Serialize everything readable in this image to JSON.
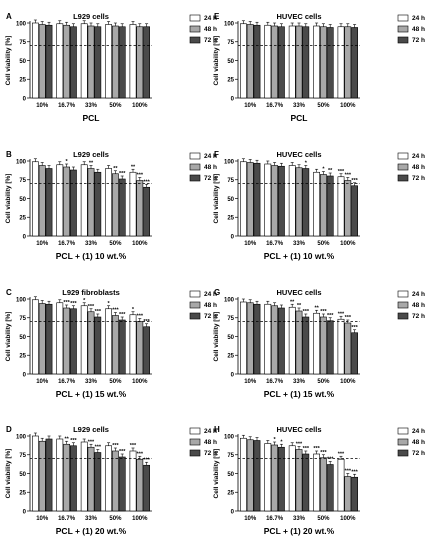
{
  "colors": {
    "h24": "#ffffff",
    "h48": "#a8a8a8",
    "h72": "#4a4a4a",
    "axis": "#000000"
  },
  "chart_data": [
    {
      "type": "bar",
      "panel_letter": "A",
      "title": "L929 cells",
      "xlabel": "PCL",
      "ylabel": "Cell viability [%]",
      "categories": [
        "10%",
        "16.7%",
        "33%",
        "50%",
        "100%"
      ],
      "ylim": [
        0,
        100
      ],
      "yticks": [
        0,
        25,
        50,
        75,
        100
      ],
      "reference_line": 70,
      "legend": [
        "24 h",
        "48 h",
        "72 h"
      ],
      "legend_position": "right",
      "series": [
        {
          "name": "24 h",
          "values": [
            100,
            99,
            99,
            98,
            98
          ],
          "stars": [
            "",
            "",
            "",
            "",
            ""
          ]
        },
        {
          "name": "48 h",
          "values": [
            98,
            97,
            96,
            96,
            95
          ],
          "stars": [
            "",
            "",
            "",
            "",
            ""
          ]
        },
        {
          "name": "72 h",
          "values": [
            97,
            95,
            95,
            95,
            95
          ],
          "stars": [
            "",
            "",
            "",
            "",
            ""
          ]
        }
      ]
    },
    {
      "type": "bar",
      "panel_letter": "B",
      "title": "L929 cells",
      "xlabel": "PCL + (1) 10 wt.%",
      "ylabel": "Cell viability [%]",
      "categories": [
        "10%",
        "16.7%",
        "33%",
        "50%",
        "100%"
      ],
      "ylim": [
        0,
        100
      ],
      "yticks": [
        0,
        25,
        50,
        75,
        100
      ],
      "reference_line": 70,
      "legend": [
        "24 h",
        "48 h",
        "72 h"
      ],
      "legend_position": "right",
      "series": [
        {
          "name": "24 h",
          "values": [
            99,
            95,
            95,
            90,
            85
          ],
          "stars": [
            "",
            "",
            "",
            "",
            "**"
          ]
        },
        {
          "name": "48 h",
          "values": [
            94,
            92,
            90,
            83,
            74
          ],
          "stars": [
            "",
            "*",
            "**",
            "**",
            "***"
          ]
        },
        {
          "name": "72 h",
          "values": [
            90,
            88,
            85,
            76,
            65
          ],
          "stars": [
            "",
            "",
            "",
            "***",
            "***"
          ]
        }
      ]
    },
    {
      "type": "bar",
      "panel_letter": "C",
      "title": "L929 fibroblasts",
      "xlabel": "PCL + (1) 15 wt.%",
      "ylabel": "Cell viability [%]",
      "categories": [
        "10%",
        "16.7%",
        "33%",
        "50%",
        "100%"
      ],
      "ylim": [
        0,
        100
      ],
      "yticks": [
        0,
        25,
        50,
        75,
        100
      ],
      "reference_line": 70,
      "legend": [
        "24 h",
        "48 h",
        "72 h"
      ],
      "legend_position": "right",
      "series": [
        {
          "name": "24 h",
          "values": [
            99,
            95,
            91,
            87,
            79
          ],
          "stars": [
            "",
            "",
            "*",
            "*",
            "*"
          ]
        },
        {
          "name": "48 h",
          "values": [
            94,
            88,
            83,
            78,
            70
          ],
          "stars": [
            "",
            "***",
            "***",
            "***",
            "***"
          ]
        },
        {
          "name": "72 h",
          "values": [
            93,
            87,
            76,
            72,
            63
          ],
          "stars": [
            "",
            "***",
            "***",
            "***",
            "***"
          ]
        }
      ]
    },
    {
      "type": "bar",
      "panel_letter": "D",
      "title": "L929 cells",
      "xlabel": "PCL + (1) 20 wt.%",
      "ylabel": "Cell viability [%]",
      "categories": [
        "10%",
        "16.7%",
        "33%",
        "50%",
        "100%"
      ],
      "ylim": [
        0,
        100
      ],
      "yticks": [
        0,
        25,
        50,
        75,
        100
      ],
      "reference_line": 70,
      "legend": [
        "24 h",
        "48 h",
        "72 h"
      ],
      "legend_position": "right",
      "series": [
        {
          "name": "24 h",
          "values": [
            100,
            96,
            92,
            87,
            80
          ],
          "stars": [
            "",
            "",
            "",
            "",
            "***"
          ]
        },
        {
          "name": "48 h",
          "values": [
            93,
            89,
            85,
            80,
            69
          ],
          "stars": [
            "",
            "**",
            "***",
            "***",
            "***"
          ]
        },
        {
          "name": "72 h",
          "values": [
            96,
            87,
            78,
            72,
            61
          ],
          "stars": [
            "",
            "***",
            "***",
            "***",
            "***"
          ]
        }
      ]
    },
    {
      "type": "bar",
      "panel_letter": "E",
      "title": "HUVEC cells",
      "xlabel": "PCL",
      "ylabel": "Cell viability [%]",
      "categories": [
        "10%",
        "16.7%",
        "33%",
        "50%",
        "100%"
      ],
      "ylim": [
        0,
        100
      ],
      "yticks": [
        0,
        25,
        50,
        75,
        100
      ],
      "reference_line": 70,
      "legend": [
        "24 h",
        "48 h",
        "72 h"
      ],
      "legend_position": "right",
      "series": [
        {
          "name": "24 h",
          "values": [
            99,
            97,
            96,
            96,
            95
          ],
          "stars": [
            "",
            "",
            "",
            "",
            ""
          ]
        },
        {
          "name": "48 h",
          "values": [
            98,
            96,
            96,
            95,
            95
          ],
          "stars": [
            "",
            "",
            "",
            "",
            ""
          ]
        },
        {
          "name": "72 h",
          "values": [
            97,
            95,
            95,
            94,
            94
          ],
          "stars": [
            "",
            "",
            "",
            "",
            ""
          ]
        }
      ]
    },
    {
      "type": "bar",
      "panel_letter": "F",
      "title": "HUVEC cells",
      "xlabel": "PCL + (1) 10 wt.%",
      "ylabel": "Cell viability [%]",
      "categories": [
        "10%",
        "16.7%",
        "33%",
        "50%",
        "100%"
      ],
      "ylim": [
        0,
        100
      ],
      "yticks": [
        0,
        25,
        50,
        75,
        100
      ],
      "reference_line": 70,
      "legend": [
        "24 h",
        "48 h",
        "72 h"
      ],
      "legend_position": "right",
      "series": [
        {
          "name": "24 h",
          "values": [
            99,
            96,
            94,
            85,
            79
          ],
          "stars": [
            "",
            "",
            "",
            "",
            "***"
          ]
        },
        {
          "name": "48 h",
          "values": [
            98,
            94,
            91,
            82,
            74
          ],
          "stars": [
            "",
            "",
            "",
            "*",
            "***"
          ]
        },
        {
          "name": "72 h",
          "values": [
            97,
            93,
            90,
            80,
            67
          ],
          "stars": [
            "",
            "",
            "*",
            "**",
            "***"
          ]
        }
      ]
    },
    {
      "type": "bar",
      "panel_letter": "G",
      "title": "HUVEC cells",
      "xlabel": "PCL + (1) 15 wt.%",
      "ylabel": "Cell viability [%]",
      "categories": [
        "10%",
        "16.7%",
        "33%",
        "50%",
        "100%"
      ],
      "ylim": [
        0,
        100
      ],
      "yticks": [
        0,
        25,
        50,
        75,
        100
      ],
      "reference_line": 70,
      "legend": [
        "24 h",
        "48 h",
        "72 h"
      ],
      "legend_position": "right",
      "series": [
        {
          "name": "24 h",
          "values": [
            96,
            93,
            89,
            81,
            73
          ],
          "stars": [
            "",
            "",
            "**",
            "**",
            "***"
          ]
        },
        {
          "name": "48 h",
          "values": [
            95,
            91,
            84,
            76,
            68
          ],
          "stars": [
            "",
            "",
            "**",
            "***",
            "***"
          ]
        },
        {
          "name": "72 h",
          "values": [
            93,
            88,
            76,
            71,
            55
          ],
          "stars": [
            "",
            "",
            "***",
            "***",
            "***"
          ]
        }
      ]
    },
    {
      "type": "bar",
      "panel_letter": "H",
      "title": "HUVEC cells",
      "xlabel": "PCL + (1) 20 wt.%",
      "ylabel": "Cell viability [%]",
      "categories": [
        "10%",
        "16.7%",
        "33%",
        "50%",
        "100%"
      ],
      "ylim": [
        0,
        100
      ],
      "yticks": [
        0,
        25,
        50,
        75,
        100
      ],
      "reference_line": 70,
      "legend": [
        "24 h",
        "48 h",
        "72 h"
      ],
      "legend_position": "right",
      "series": [
        {
          "name": "24 h",
          "values": [
            97,
            90,
            87,
            76,
            69
          ],
          "stars": [
            "",
            "",
            "",
            "***",
            "***"
          ]
        },
        {
          "name": "48 h",
          "values": [
            95,
            88,
            82,
            71,
            46
          ],
          "stars": [
            "",
            "*",
            "***",
            "***",
            "***"
          ]
        },
        {
          "name": "72 h",
          "values": [
            94,
            85,
            76,
            62,
            45
          ],
          "stars": [
            "",
            "*",
            "***",
            "***",
            "***"
          ]
        }
      ]
    }
  ]
}
